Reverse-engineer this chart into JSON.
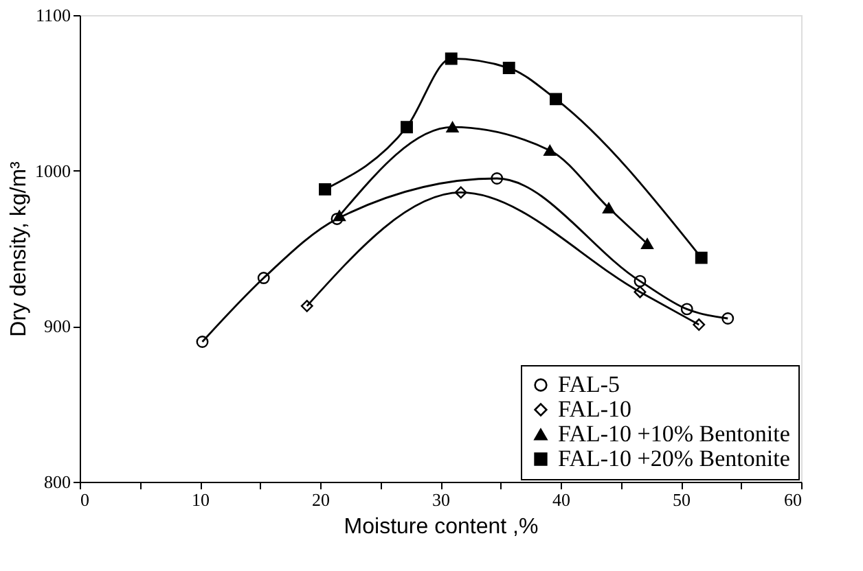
{
  "chart_data": {
    "type": "line",
    "xlabel": "Moisture content ,%",
    "ylabel": "Dry density, kg/m³",
    "xlim": [
      0,
      60
    ],
    "ylim": [
      800,
      1100
    ],
    "xticks": [
      0,
      {
        "value": 5,
        "label": null
      },
      10,
      {
        "value": 15,
        "label": null
      },
      20,
      {
        "value": 25,
        "label": null
      },
      30,
      {
        "value": 35,
        "label": null
      },
      40,
      {
        "value": 45,
        "label": null
      },
      50,
      {
        "value": 55,
        "label": null
      },
      60
    ],
    "yticks": [
      800,
      900,
      1000,
      1100
    ],
    "grid": false,
    "legend": "bottom right",
    "line_style": "solid",
    "series": [
      {
        "name": "FAL-5",
        "color": "#000000",
        "marker": "circle",
        "x": [
          10.2,
          15.3,
          21.4,
          34.7,
          46.6,
          50.5,
          53.9
        ],
        "values": [
          890,
          931,
          969,
          995,
          929,
          911,
          905
        ]
      },
      {
        "name": "FAL-10",
        "color": "#000000",
        "marker": "diamond",
        "x": [
          18.9,
          31.7,
          46.6,
          51.5
        ],
        "values": [
          913,
          986,
          922,
          901
        ]
      },
      {
        "name": "FAL-10 +10% Bentonite",
        "color": "#000000",
        "marker": "triangle",
        "x": [
          21.6,
          31.0,
          39.1,
          44.0,
          47.2
        ],
        "values": [
          971,
          1028,
          1013,
          976,
          953
        ]
      },
      {
        "name": "FAL-10 +20% Bentonite",
        "color": "#000000",
        "marker": "square",
        "x": [
          20.4,
          27.2,
          30.9,
          35.7,
          39.6,
          51.7
        ],
        "values": [
          988,
          1028,
          1072,
          1066,
          1046,
          944
        ]
      }
    ]
  }
}
